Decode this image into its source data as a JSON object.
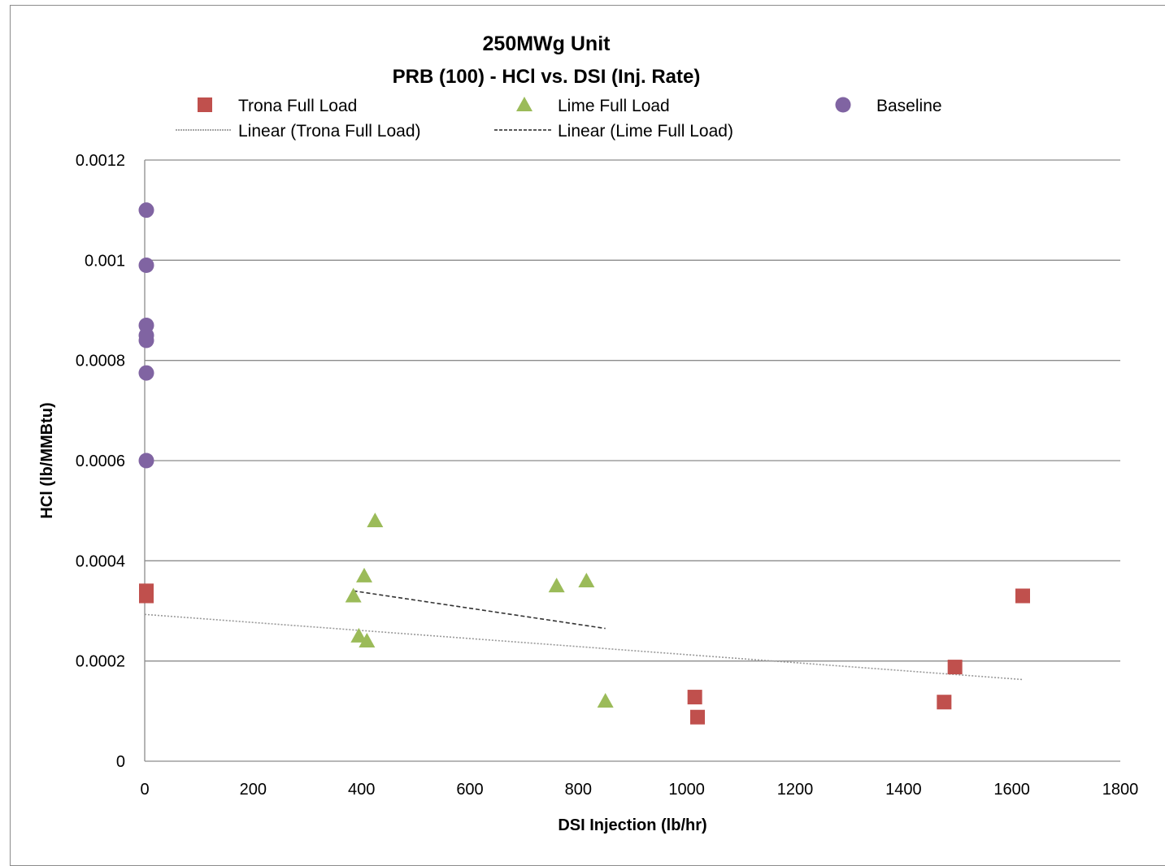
{
  "chart_data": {
    "type": "scatter",
    "title": "250MWg Unit",
    "subtitle": "PRB  (100) -  HCl vs. DSI (Inj. Rate)",
    "xlabel": "DSI Injection (lb/hr)",
    "ylabel": "HCl (lb/MMBtu)",
    "xlim": [
      0,
      1800
    ],
    "ylim": [
      0,
      0.0012
    ],
    "x_ticks": [
      "0",
      "200",
      "400",
      "600",
      "800",
      "1000",
      "1200",
      "1400",
      "1600",
      "1800"
    ],
    "y_ticks": [
      "0",
      "0.0002",
      "0.0004",
      "0.0006",
      "0.0008",
      "0.001",
      "0.0012"
    ],
    "grid": "horizontal",
    "legend_position": "top",
    "series": [
      {
        "name": "Trona Full Load",
        "marker": "square",
        "color": "#c0504d",
        "points": [
          [
            3,
            0.00034
          ],
          [
            3,
            0.00033
          ],
          [
            1015,
            0.000128
          ],
          [
            1020,
            8.8e-05
          ],
          [
            1475,
            0.000118
          ],
          [
            1495,
            0.000188
          ],
          [
            1620,
            0.00033
          ]
        ]
      },
      {
        "name": "Lime Full Load",
        "marker": "triangle",
        "color": "#9bbb59",
        "points": [
          [
            385,
            0.00033
          ],
          [
            405,
            0.00037
          ],
          [
            425,
            0.00048
          ],
          [
            395,
            0.00025
          ],
          [
            410,
            0.00024
          ],
          [
            760,
            0.00035
          ],
          [
            815,
            0.00036
          ],
          [
            850,
            0.00012
          ]
        ]
      },
      {
        "name": "Baseline",
        "marker": "circle",
        "color": "#8064a2",
        "points": [
          [
            3,
            0.0011
          ],
          [
            3,
            0.00099
          ],
          [
            3,
            0.00087
          ],
          [
            3,
            0.00085
          ],
          [
            3,
            0.00084
          ],
          [
            3,
            0.000775
          ],
          [
            3,
            0.0006
          ]
        ]
      }
    ],
    "trendlines": [
      {
        "name": "Linear (Trona Full Load)",
        "style": "dotted",
        "color": "#999999",
        "x": [
          0,
          1620
        ],
        "y": [
          0.000293,
          0.000163
        ]
      },
      {
        "name": "Linear (Lime Full Load)",
        "style": "dashed",
        "color": "#333333",
        "x": [
          385,
          850
        ],
        "y": [
          0.00034,
          0.000265
        ]
      }
    ]
  }
}
